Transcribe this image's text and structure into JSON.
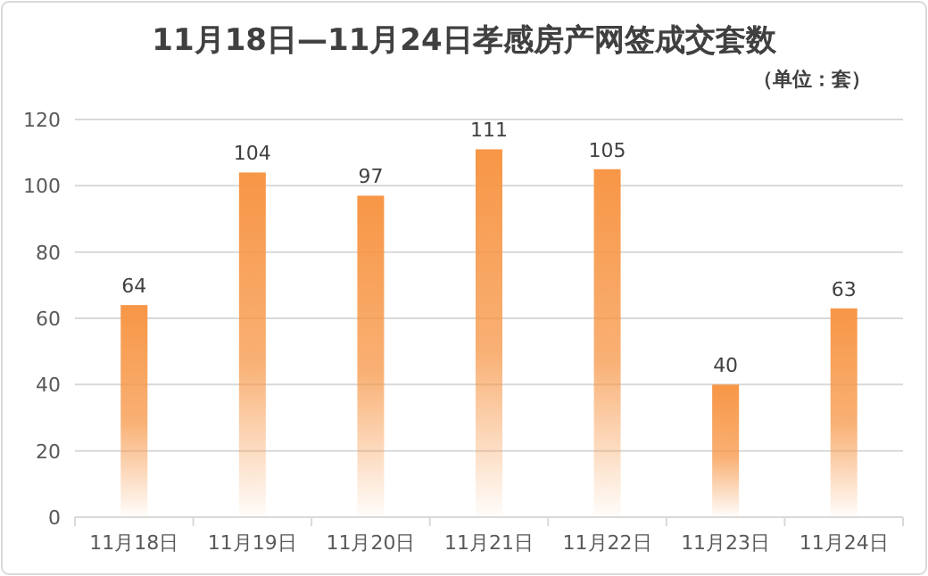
{
  "chart_data": {
    "type": "bar",
    "title": "11月18日—11月24日孝感房产网签成交套数",
    "subtitle": "（单位：套）",
    "categories": [
      "11月18日",
      "11月19日",
      "11月20日",
      "11月21日",
      "11月22日",
      "11月23日",
      "11月24日"
    ],
    "values": [
      64,
      104,
      97,
      111,
      105,
      40,
      63
    ],
    "color": "#f79646",
    "ylim": [
      0,
      120
    ],
    "yticks": [
      0,
      20,
      40,
      60,
      80,
      100,
      120
    ],
    "grid": "y",
    "data_labels": true
  }
}
